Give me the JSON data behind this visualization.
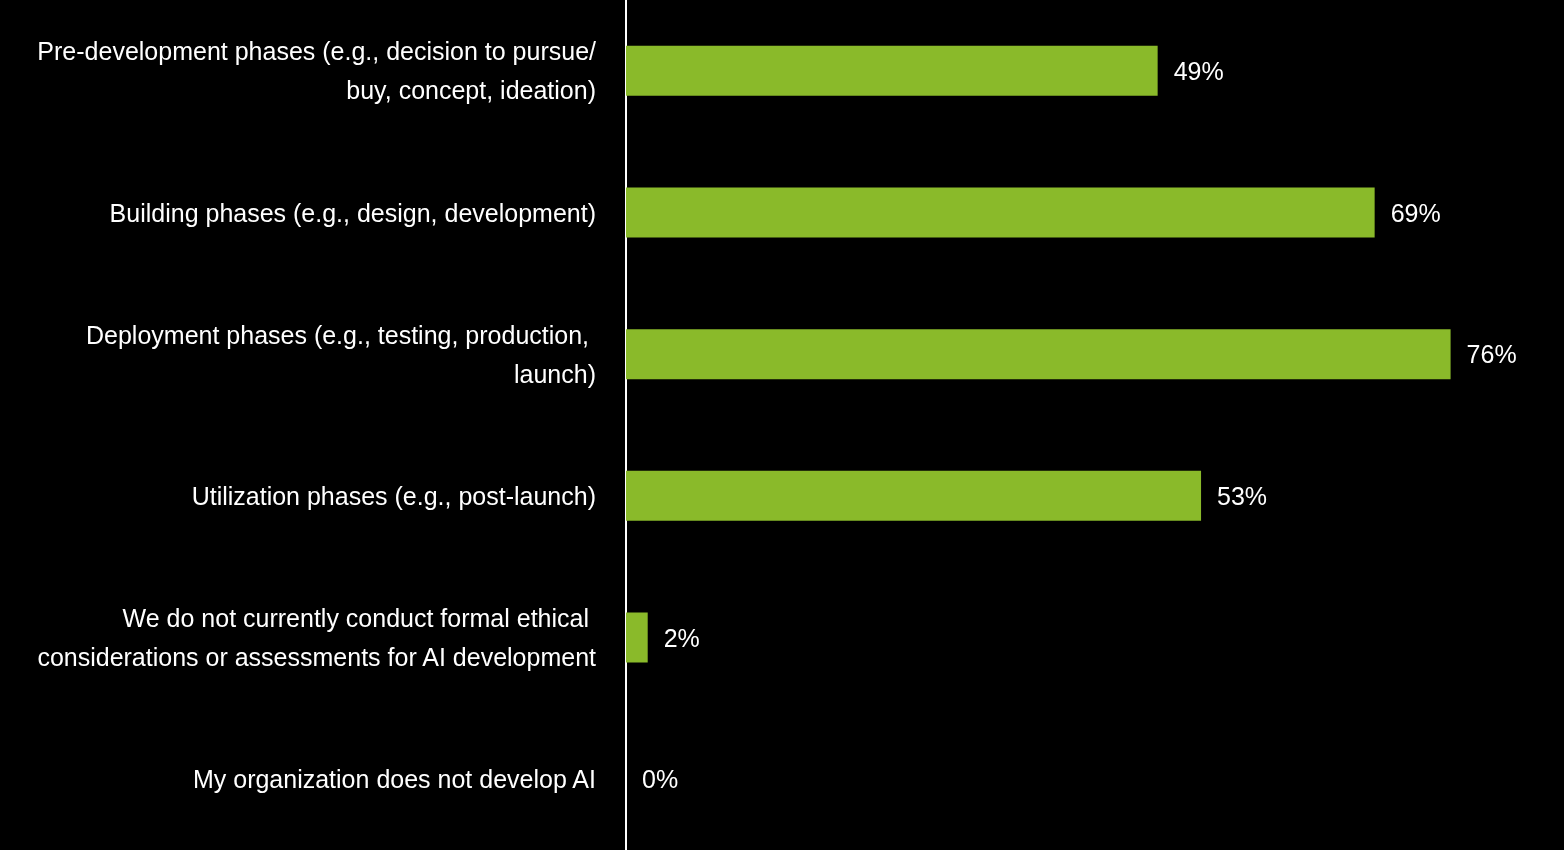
{
  "chart_data": {
    "type": "bar",
    "orientation": "horizontal",
    "categories": [
      "Pre-development phases (e.g., decision to pursue/buy, concept, ideation)",
      "Building phases (e.g., design, development)",
      "Deployment phases (e.g., testing, production, launch)",
      "Utilization phases (e.g., post-launch)",
      "We do not currently conduct formal ethical considerations or assessments for AI development",
      "My organization does not develop AI"
    ],
    "values": [
      49,
      69,
      76,
      53,
      2,
      0
    ],
    "value_labels": [
      "49%",
      "69%",
      "76%",
      "53%",
      "2%",
      "0%"
    ],
    "color": "#8aba2a",
    "tick_labels": "y"
  }
}
